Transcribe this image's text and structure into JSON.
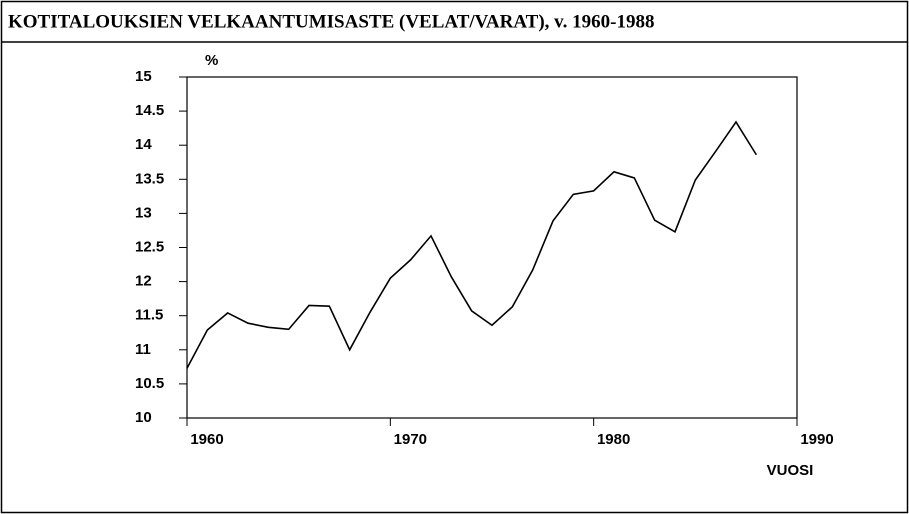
{
  "chart_data": {
    "type": "line",
    "title": "KOTITALOUKSIEN VELKAANTUMISASTE (VELAT/VARAT), v. 1960-1988",
    "y_label": "%",
    "x_label": "VUOSI",
    "x": [
      1960,
      1961,
      1962,
      1963,
      1964,
      1965,
      1966,
      1967,
      1968,
      1969,
      1970,
      1971,
      1972,
      1973,
      1974,
      1975,
      1976,
      1977,
      1978,
      1979,
      1980,
      1981,
      1982,
      1983,
      1984,
      1985,
      1986,
      1987,
      1988
    ],
    "values": [
      10.73,
      11.29,
      11.54,
      11.39,
      11.33,
      11.3,
      11.65,
      11.64,
      11.0,
      11.55,
      12.05,
      12.32,
      12.67,
      12.07,
      11.57,
      11.36,
      11.63,
      12.17,
      12.89,
      13.28,
      13.33,
      13.61,
      13.52,
      12.9,
      12.73,
      13.49,
      13.91,
      14.34,
      13.86
    ],
    "color": "#000000",
    "xlim": [
      1960,
      1990
    ],
    "xticks": [
      1960,
      1970,
      1980,
      1990
    ],
    "ylim": [
      10,
      15
    ],
    "yticks": [
      10,
      10.5,
      11,
      11.5,
      12,
      12.5,
      13,
      13.5,
      14,
      14.5,
      15
    ]
  }
}
